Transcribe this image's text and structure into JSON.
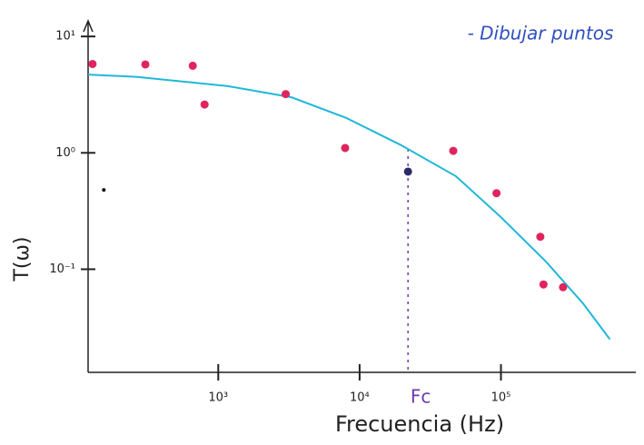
{
  "chart_data": {
    "type": "line",
    "x_label": "Frecuencia (Hz)",
    "y_label": "T(ω)",
    "note": "- Dibujar puntos",
    "log_x": true,
    "log_y": true,
    "xlim": [
      120,
      900000
    ],
    "ylim": [
      0.013,
      12
    ],
    "xticks": [
      {
        "value": 1000,
        "label": "10³"
      },
      {
        "value": 10000,
        "label": "10⁴"
      },
      {
        "value": 100000,
        "label": "10⁵"
      }
    ],
    "yticks": [
      {
        "value": 0.1,
        "label": "10⁻¹"
      },
      {
        "value": 1,
        "label": "10⁰"
      },
      {
        "value": 10,
        "label": "10¹"
      }
    ],
    "series": [
      {
        "type": "line",
        "color": "#1fb8d8",
        "x": [
          120,
          263,
          1160,
          3300,
          8000,
          19500,
          48000,
          100000,
          210000,
          380000,
          590000
        ],
        "values": [
          4.7,
          4.5,
          3.75,
          3.0,
          2.0,
          1.17,
          0.63,
          0.28,
          0.115,
          0.051,
          0.025
        ]
      },
      {
        "type": "scatter",
        "color": "#e0245e",
        "x": [
          129,
          305,
          660,
          800,
          3000,
          7900,
          46000,
          93000,
          190000,
          200000,
          275000
        ],
        "values": [
          5.8,
          5.75,
          5.6,
          2.6,
          3.2,
          1.1,
          1.04,
          0.45,
          0.19,
          0.074,
          0.07
        ]
      },
      {
        "type": "scatter",
        "color": "#2a2a6a",
        "x": [
          22000
        ],
        "values": [
          0.69
        ]
      },
      {
        "type": "scatter",
        "color": "#111111",
        "x": [
          155
        ],
        "values": [
          0.48
        ]
      }
    ],
    "fc": {
      "label": "Fc",
      "x": 22000,
      "color": "#6a3ab0"
    }
  }
}
